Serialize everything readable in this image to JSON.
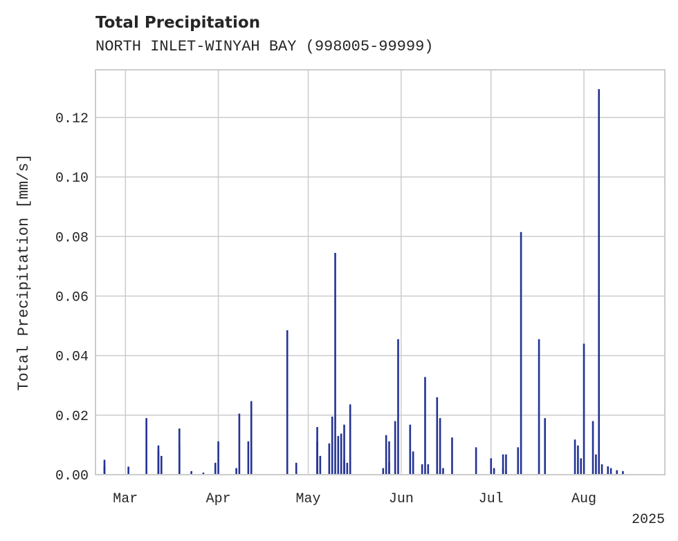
{
  "chart_data": {
    "type": "bar",
    "title": "Total Precipitation",
    "subtitle": "NORTH INLET-WINYAH BAY (998005-99999)",
    "xlabel": "",
    "ylabel": "Total Precipitation [mm/s]",
    "year_label": "2025",
    "xlim": [
      "2025-02-19",
      "2025-08-28"
    ],
    "ylim": [
      0,
      0.136
    ],
    "y_ticks": [
      0.0,
      0.02,
      0.04,
      0.06,
      0.08,
      0.1,
      0.12
    ],
    "y_tick_labels": [
      "0.00",
      "0.02",
      "0.04",
      "0.06",
      "0.08",
      "0.10",
      "0.12"
    ],
    "x_ticks": [
      "2025-03-01",
      "2025-04-01",
      "2025-05-01",
      "2025-06-01",
      "2025-07-01",
      "2025-08-01"
    ],
    "x_tick_labels": [
      "Mar",
      "Apr",
      "May",
      "Jun",
      "Jul",
      "Aug"
    ],
    "grid": true,
    "color": "#233293",
    "x": [
      "2025-02-22",
      "2025-02-22",
      "2025-03-02",
      "2025-03-08",
      "2025-03-12",
      "2025-03-12",
      "2025-03-13",
      "2025-03-19",
      "2025-03-19",
      "2025-03-23",
      "2025-03-27",
      "2025-03-31",
      "2025-04-01",
      "2025-04-07",
      "2025-04-08",
      "2025-04-11",
      "2025-04-12",
      "2025-04-24",
      "2025-04-27",
      "2025-05-04",
      "2025-05-04",
      "2025-05-05",
      "2025-05-08",
      "2025-05-09",
      "2025-05-10",
      "2025-05-11",
      "2025-05-12",
      "2025-05-13",
      "2025-05-13",
      "2025-05-14",
      "2025-05-15",
      "2025-05-26",
      "2025-05-27",
      "2025-05-28",
      "2025-05-28",
      "2025-05-30",
      "2025-05-31",
      "2025-06-04",
      "2025-06-05",
      "2025-06-08",
      "2025-06-09",
      "2025-06-10",
      "2025-06-13",
      "2025-06-14",
      "2025-06-14",
      "2025-06-15",
      "2025-06-18",
      "2025-06-26",
      "2025-07-01",
      "2025-07-02",
      "2025-07-05",
      "2025-07-05",
      "2025-07-06",
      "2025-07-06",
      "2025-07-10",
      "2025-07-11",
      "2025-07-17",
      "2025-07-19",
      "2025-07-29",
      "2025-07-30",
      "2025-07-31",
      "2025-08-01",
      "2025-08-04",
      "2025-08-05",
      "2025-08-06",
      "2025-08-07",
      "2025-08-09",
      "2025-08-10",
      "2025-08-12",
      "2025-08-14"
    ],
    "values": [
      0.005,
      0.003,
      0.0027,
      0.019,
      0.0082,
      0.0098,
      0.0063,
      0.0155,
      0.0097,
      0.0012,
      0.0007,
      0.004,
      0.0112,
      0.0022,
      0.0205,
      0.0112,
      0.0247,
      0.0485,
      0.004,
      0.016,
      0.0112,
      0.0063,
      0.0105,
      0.0195,
      0.0745,
      0.013,
      0.0138,
      0.0168,
      0.005,
      0.004,
      0.0236,
      0.0022,
      0.0133,
      0.0112,
      0.0042,
      0.018,
      0.0455,
      0.0168,
      0.0078,
      0.0035,
      0.0328,
      0.0035,
      0.026,
      0.0012,
      0.019,
      0.0022,
      0.0125,
      0.0092,
      0.0055,
      0.0022,
      0.0068,
      0.0022,
      0.0012,
      0.0068,
      0.0092,
      0.0815,
      0.0455,
      0.019,
      0.0118,
      0.0098,
      0.0055,
      0.044,
      0.018,
      0.0068,
      0.1295,
      0.0035,
      0.0028,
      0.0022,
      0.0015,
      0.0012
    ]
  }
}
